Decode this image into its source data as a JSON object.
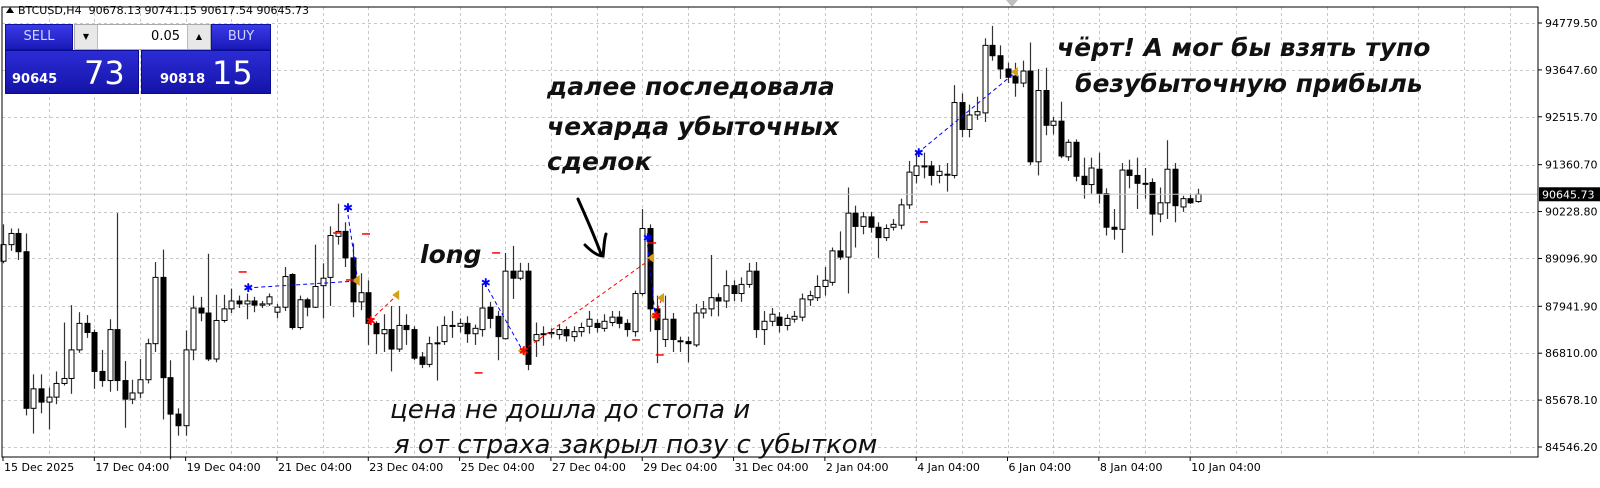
{
  "header": {
    "symbol": "BTCUSD,H4",
    "ohlc": "90678.13 90741.15 90617.54 90645.73"
  },
  "trade_panel": {
    "sell_label": "SELL",
    "buy_label": "BUY",
    "lot": "0.05",
    "sell_price_main": "90645",
    "sell_price_big": "73",
    "buy_price_main": "90818",
    "buy_price_big": "15",
    "color": "#2020c8"
  },
  "annotations": {
    "long": "long",
    "middle": [
      "далее последовала",
      "чехарда убыточных",
      "сделок"
    ],
    "right": [
      "чёрт! А мог бы взять тупо",
      "безубыточную прибыль"
    ],
    "bottom": [
      "цена не дошла до стопа и",
      "я от страха закрыл позу с убытком"
    ]
  },
  "chart_data": {
    "type": "candlestick",
    "symbol": "BTCUSD",
    "timeframe": "H4",
    "current_price": "90645.73",
    "ylim": [
      84546.2,
      94779.5
    ],
    "y_ticks": [
      "94779.50",
      "93647.60",
      "92515.70",
      "91360.70",
      "90228.80",
      "89096.90",
      "87941.90",
      "86810.00",
      "85678.10",
      "84546.20"
    ],
    "x_ticks": [
      {
        "bar": 0,
        "label": "15 Dec 2025"
      },
      {
        "bar": 12,
        "label": "17 Dec 04:00"
      },
      {
        "bar": 24,
        "label": "19 Dec 04:00"
      },
      {
        "bar": 36,
        "label": "21 Dec 04:00"
      },
      {
        "bar": 48,
        "label": "23 Dec 04:00"
      },
      {
        "bar": 60,
        "label": "25 Dec 04:00"
      },
      {
        "bar": 72,
        "label": "27 Dec 04:00"
      },
      {
        "bar": 84,
        "label": "29 Dec 04:00"
      },
      {
        "bar": 96,
        "label": "31 Dec 04:00"
      },
      {
        "bar": 108,
        "label": "2 Jan 04:00"
      },
      {
        "bar": 120,
        "label": "4 Jan 04:00"
      },
      {
        "bar": 132,
        "label": "6 Jan 04:00"
      },
      {
        "bar": 144,
        "label": "8 Jan 04:00"
      },
      {
        "bar": 156,
        "label": "10 Jan 04:00"
      }
    ],
    "grid": true,
    "colors": {
      "bull": "#ffffff",
      "bear": "#000000",
      "buy_trade": "#0000ff",
      "sell_trade": "#ff0000",
      "close_marker": "#d4a017",
      "price_box": "#000000"
    },
    "ohlc": [
      [
        89030,
        89920,
        88980,
        89430
      ],
      [
        89430,
        89820,
        89280,
        89700
      ],
      [
        89700,
        89820,
        89060,
        89260
      ],
      [
        89260,
        89700,
        85310,
        85480
      ],
      [
        85480,
        86300,
        84870,
        85950
      ],
      [
        85950,
        86300,
        85360,
        85630
      ],
      [
        85630,
        85980,
        84970,
        85750
      ],
      [
        85750,
        86370,
        85580,
        86080
      ],
      [
        86080,
        87550,
        86030,
        86200
      ],
      [
        86200,
        87970,
        85830,
        86890
      ],
      [
        86890,
        87800,
        86820,
        87530
      ],
      [
        87530,
        87730,
        87180,
        87310
      ],
      [
        87310,
        87380,
        85950,
        86370
      ],
      [
        86370,
        86890,
        86000,
        86150
      ],
      [
        86150,
        87630,
        85880,
        87380
      ],
      [
        87380,
        90190,
        85900,
        86150
      ],
      [
        86150,
        86620,
        85010,
        85700
      ],
      [
        85700,
        86170,
        85580,
        85850
      ],
      [
        85850,
        86670,
        85730,
        86170
      ],
      [
        86170,
        87160,
        86080,
        87040
      ],
      [
        87040,
        89010,
        86840,
        88640
      ],
      [
        88640,
        89310,
        85210,
        86220
      ],
      [
        86220,
        86640,
        84250,
        85340
      ],
      [
        85340,
        85480,
        84820,
        85060
      ],
      [
        85060,
        87360,
        84820,
        86890
      ],
      [
        86890,
        88200,
        86640,
        87900
      ],
      [
        87900,
        88170,
        87580,
        87780
      ],
      [
        87780,
        89210,
        86620,
        86670
      ],
      [
        86670,
        88220,
        86590,
        87600
      ],
      [
        87600,
        88220,
        87550,
        87880
      ],
      [
        87880,
        88370,
        87780,
        88070
      ],
      [
        88070,
        88200,
        87900,
        88000
      ],
      [
        88000,
        88250,
        87630,
        88070
      ],
      [
        88070,
        88170,
        87800,
        87970
      ],
      [
        87970,
        88070,
        87900,
        88000
      ],
      [
        88000,
        88250,
        87950,
        88170
      ],
      [
        87800,
        88000,
        87650,
        87920
      ],
      [
        87920,
        88890,
        87830,
        88660
      ],
      [
        88710,
        88740,
        87380,
        87430
      ],
      [
        87430,
        88200,
        87380,
        88100
      ],
      [
        88100,
        88150,
        87700,
        87920
      ],
      [
        87920,
        89430,
        87900,
        88420
      ],
      [
        88440,
        88980,
        87650,
        88620
      ],
      [
        88640,
        89870,
        87950,
        89650
      ],
      [
        89630,
        90420,
        89430,
        89750
      ],
      [
        89750,
        89970,
        88890,
        89110
      ],
      [
        89110,
        89460,
        87680,
        88050
      ],
      [
        88050,
        88740,
        87850,
        88270
      ],
      [
        88270,
        88570,
        87010,
        87530
      ],
      [
        87530,
        87580,
        86790,
        87280
      ],
      [
        87280,
        87750,
        86840,
        87380
      ],
      [
        87380,
        87950,
        86370,
        86910
      ],
      [
        86910,
        87950,
        86840,
        87480
      ],
      [
        87480,
        87750,
        87010,
        87380
      ],
      [
        87380,
        87460,
        86640,
        86690
      ],
      [
        86720,
        86840,
        86450,
        86540
      ],
      [
        86540,
        87210,
        86470,
        87040
      ],
      [
        87060,
        87460,
        86150,
        87060
      ],
      [
        87090,
        87700,
        87010,
        87480
      ],
      [
        87480,
        87830,
        87180,
        87480
      ],
      [
        87460,
        87650,
        87310,
        87530
      ],
      [
        87530,
        87700,
        87060,
        87280
      ],
      [
        87280,
        87500,
        87010,
        87410
      ],
      [
        87380,
        88490,
        87210,
        87900
      ],
      [
        87920,
        88050,
        87410,
        87650
      ],
      [
        87700,
        87830,
        86640,
        87210
      ],
      [
        87160,
        89230,
        87140,
        88790
      ],
      [
        88790,
        89400,
        88120,
        88620
      ],
      [
        88620,
        88990,
        88570,
        88790
      ],
      [
        88790,
        88990,
        86400,
        86540
      ],
      [
        87110,
        87550,
        86720,
        87260
      ],
      [
        87280,
        87460,
        86990,
        87280
      ],
      [
        87280,
        87410,
        87180,
        87310
      ],
      [
        87260,
        87500,
        87140,
        87380
      ],
      [
        87380,
        87460,
        87090,
        87230
      ],
      [
        87210,
        87460,
        87090,
        87330
      ],
      [
        87330,
        87550,
        87210,
        87430
      ],
      [
        87460,
        87830,
        87280,
        87630
      ],
      [
        87530,
        87630,
        87310,
        87430
      ],
      [
        87410,
        87750,
        87330,
        87580
      ],
      [
        87550,
        87830,
        87460,
        87680
      ],
      [
        87680,
        87830,
        87410,
        87530
      ],
      [
        87530,
        87630,
        87210,
        87380
      ],
      [
        87330,
        88320,
        87210,
        88250
      ],
      [
        88250,
        90290,
        88200,
        89820
      ],
      [
        89820,
        89920,
        87330,
        87880
      ],
      [
        87880,
        88200,
        86570,
        87380
      ],
      [
        87140,
        88200,
        86960,
        87630
      ],
      [
        87630,
        87780,
        86840,
        87140
      ],
      [
        87110,
        87210,
        86840,
        87110
      ],
      [
        87090,
        87210,
        86590,
        87040
      ],
      [
        87010,
        88000,
        86960,
        87780
      ],
      [
        87780,
        88070,
        87650,
        87880
      ],
      [
        87880,
        89180,
        87700,
        88150
      ],
      [
        88150,
        88250,
        87700,
        88070
      ],
      [
        88070,
        88810,
        87900,
        88440
      ],
      [
        88440,
        88570,
        88070,
        88250
      ],
      [
        88250,
        88640,
        88050,
        88470
      ],
      [
        88470,
        88990,
        88390,
        88790
      ],
      [
        88790,
        89010,
        87180,
        87380
      ],
      [
        87380,
        87830,
        87010,
        87580
      ],
      [
        87580,
        87900,
        87460,
        87750
      ],
      [
        87680,
        87800,
        87310,
        87480
      ],
      [
        87480,
        87750,
        87360,
        87650
      ],
      [
        87630,
        87830,
        87550,
        87700
      ],
      [
        87680,
        88250,
        87580,
        88120
      ],
      [
        88100,
        88320,
        87950,
        88200
      ],
      [
        88150,
        88690,
        88070,
        88420
      ],
      [
        88420,
        88890,
        88200,
        88570
      ],
      [
        88520,
        89360,
        88440,
        89280
      ],
      [
        89280,
        89750,
        89060,
        89130
      ],
      [
        89130,
        90810,
        88250,
        90190
      ],
      [
        90190,
        90370,
        89360,
        89870
      ],
      [
        89870,
        90220,
        89680,
        90100
      ],
      [
        90100,
        90220,
        89720,
        89850
      ],
      [
        89850,
        89970,
        89110,
        89600
      ],
      [
        89600,
        89920,
        89520,
        89820
      ],
      [
        89850,
        90050,
        89770,
        89920
      ],
      [
        89900,
        90540,
        89800,
        90390
      ],
      [
        90390,
        91450,
        90290,
        91180
      ],
      [
        91100,
        91700,
        90910,
        91330
      ],
      [
        91330,
        91650,
        91030,
        91330
      ],
      [
        91330,
        91450,
        90860,
        91100
      ],
      [
        91100,
        91350,
        90910,
        91200
      ],
      [
        91130,
        91400,
        90710,
        91130
      ],
      [
        91100,
        93280,
        91030,
        92860
      ],
      [
        92860,
        93080,
        92020,
        92210
      ],
      [
        92210,
        92810,
        92020,
        92560
      ],
      [
        92560,
        93000,
        92440,
        92640
      ],
      [
        92610,
        94410,
        92390,
        94240
      ],
      [
        94240,
        94710,
        93870,
        93990
      ],
      [
        93990,
        94240,
        93430,
        93670
      ],
      [
        93670,
        93820,
        93330,
        93470
      ],
      [
        93500,
        93820,
        93000,
        93330
      ],
      [
        93330,
        93870,
        93230,
        93620
      ],
      [
        93620,
        94310,
        91350,
        91430
      ],
      [
        91430,
        93670,
        91100,
        93150
      ],
      [
        93150,
        93700,
        92070,
        92310
      ],
      [
        92310,
        92510,
        92090,
        92410
      ],
      [
        92410,
        92880,
        91520,
        91570
      ],
      [
        91550,
        91970,
        91450,
        91900
      ],
      [
        91900,
        91970,
        90960,
        91080
      ],
      [
        91080,
        91530,
        90540,
        90880
      ],
      [
        90880,
        91530,
        90660,
        91280
      ],
      [
        91250,
        91650,
        90420,
        90660
      ],
      [
        90660,
        90790,
        89650,
        89850
      ],
      [
        89850,
        90290,
        89550,
        89800
      ],
      [
        89800,
        91400,
        89230,
        91230
      ],
      [
        91230,
        91480,
        90790,
        91100
      ],
      [
        91100,
        91530,
        90290,
        90910
      ],
      [
        90910,
        91280,
        90540,
        90910
      ],
      [
        90930,
        91030,
        89650,
        90170
      ],
      [
        90170,
        90810,
        89970,
        90440
      ],
      [
        90440,
        91950,
        90050,
        91250
      ],
      [
        91250,
        91400,
        89970,
        90370
      ],
      [
        90340,
        90610,
        90220,
        90540
      ],
      [
        90540,
        90660,
        90410,
        90440
      ],
      [
        90470,
        90780,
        90440,
        90645.73
      ]
    ],
    "trades": [
      {
        "type": "buy",
        "from": [
          32.1,
          88385
        ],
        "to": [
          46.6,
          88554
        ]
      },
      {
        "type": "buy",
        "from": [
          45.2,
          90315
        ],
        "to": [
          46.6,
          88578
        ]
      },
      {
        "type": "sell",
        "from": [
          48.2,
          87589
        ],
        "to": [
          51.8,
          88216
        ]
      },
      {
        "type": "buy",
        "from": [
          63.3,
          88506
        ],
        "to": [
          68.3,
          86865
        ]
      },
      {
        "type": "sell",
        "from": [
          68.3,
          86865
        ],
        "to": [
          85.3,
          89109
        ]
      },
      {
        "type": "buy",
        "from": [
          84.6,
          89592
        ],
        "to": [
          85.7,
          87709
        ]
      },
      {
        "type": "sell",
        "from": [
          85.7,
          87709
        ],
        "to": [
          86.6,
          88144
        ]
      },
      {
        "type": "buy",
        "from": [
          120.2,
          91643
        ],
        "to": [
          133.1,
          93597
        ]
      }
    ],
    "stop_markers": [
      [
        31.5,
        88771
      ],
      [
        45.6,
        88578
      ],
      [
        43.9,
        89712
      ],
      [
        47.7,
        89688
      ],
      [
        64.8,
        89230
      ],
      [
        62.5,
        86334
      ],
      [
        85.3,
        89471
      ],
      [
        83.2,
        87130
      ],
      [
        86.3,
        86768
      ],
      [
        121,
        89978
      ]
    ]
  }
}
